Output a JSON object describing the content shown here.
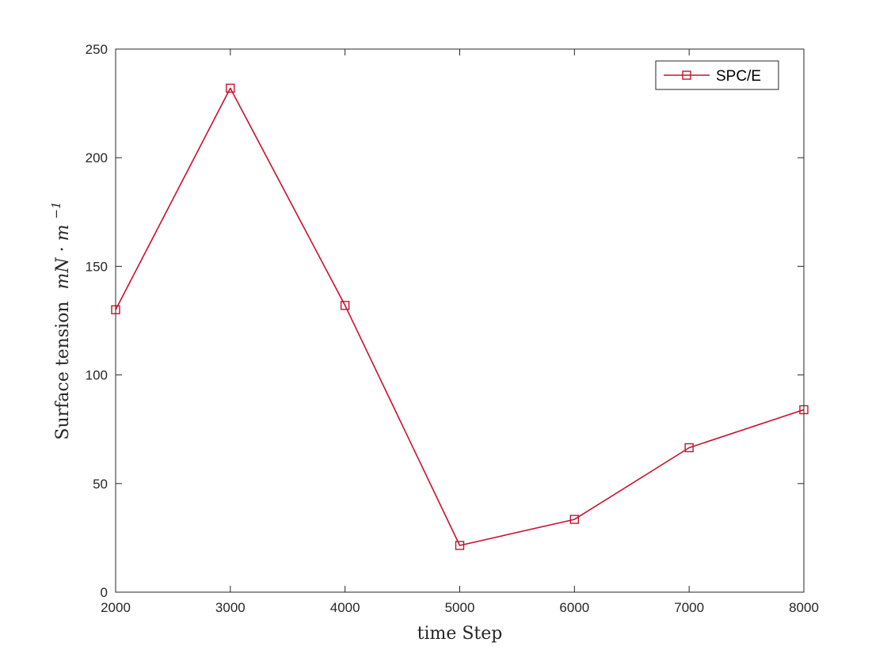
{
  "chart_data": {
    "type": "line",
    "xlabel": "time Step",
    "ylabel": "Surface tension",
    "ylabel_units": "mN · m",
    "ylabel_units_exponent": "−1",
    "xlim": [
      2000,
      8000
    ],
    "ylim": [
      0,
      250
    ],
    "x_ticks": [
      2000,
      3000,
      4000,
      5000,
      6000,
      7000,
      8000
    ],
    "y_ticks": [
      0,
      50,
      100,
      150,
      200,
      250
    ],
    "grid": false,
    "legend": "top-right",
    "marker": "square",
    "series": [
      {
        "name": "SPC/E",
        "color": "#c8102e",
        "x": [
          2000,
          3000,
          4000,
          5000,
          6000,
          7000,
          8000
        ],
        "y": [
          130,
          232,
          132,
          21.5,
          33.5,
          66.5,
          84
        ]
      }
    ]
  }
}
